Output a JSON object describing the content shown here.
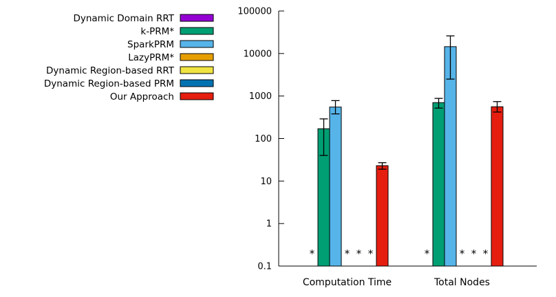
{
  "chart_data": {
    "type": "bar",
    "yscale": "log",
    "ylim": [
      0.1,
      100000
    ],
    "grid": false,
    "legend_position": "top-left",
    "xlabel": "",
    "ylabel": "",
    "title": "",
    "y_ticks": [
      {
        "value": 0.1,
        "label": "0.1"
      },
      {
        "value": 1,
        "label": "1"
      },
      {
        "value": 10,
        "label": "10"
      },
      {
        "value": 100,
        "label": "100"
      },
      {
        "value": 1000,
        "label": "1000"
      },
      {
        "value": 10000,
        "label": "10000"
      },
      {
        "value": 100000,
        "label": "100000"
      }
    ],
    "categories": [
      "Computation Time",
      "Total Nodes"
    ],
    "missing_marker": "*",
    "series": [
      {
        "name": "Dynamic Domain RRT",
        "color": "#9400d3",
        "values": [
          null,
          null
        ],
        "errors": [
          null,
          null
        ]
      },
      {
        "name": "k-PRM*",
        "color": "#009e73",
        "values": [
          170,
          700
        ],
        "errors": [
          [
            40,
            290
          ],
          [
            520,
            880
          ]
        ]
      },
      {
        "name": "SparkPRM",
        "color": "#56b4e9",
        "values": [
          550,
          14500
        ],
        "errors": [
          [
            380,
            780
          ],
          [
            2500,
            26000
          ]
        ]
      },
      {
        "name": "LazyPRM*",
        "color": "#e69f00",
        "values": [
          null,
          null
        ],
        "errors": [
          null,
          null
        ]
      },
      {
        "name": "Dynamic Region-based RRT",
        "color": "#f0e442",
        "values": [
          null,
          null
        ],
        "errors": [
          null,
          null
        ]
      },
      {
        "name": "Dynamic Region-based PRM",
        "color": "#0072b2",
        "values": [
          null,
          null
        ],
        "errors": [
          null,
          null
        ]
      },
      {
        "name": "Our Approach",
        "color": "#e51e10",
        "values": [
          23,
          560
        ],
        "errors": [
          [
            19,
            27
          ],
          [
            420,
            740
          ]
        ]
      }
    ]
  }
}
